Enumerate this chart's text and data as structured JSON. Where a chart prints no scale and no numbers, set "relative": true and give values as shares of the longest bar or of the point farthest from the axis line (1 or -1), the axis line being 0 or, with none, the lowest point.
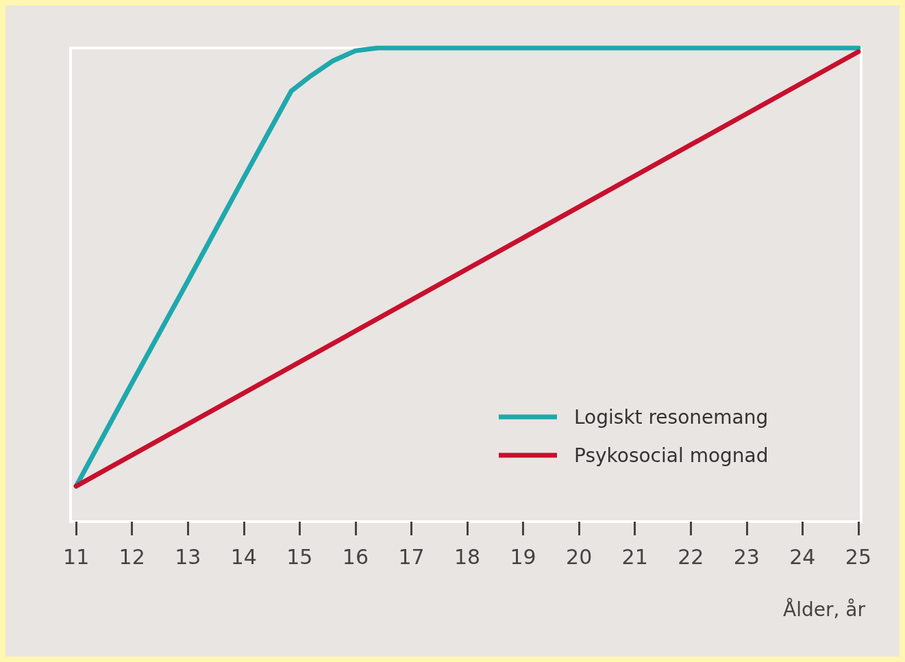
{
  "chart_data": {
    "type": "line",
    "relative": true,
    "xlabel": "Ålder, år",
    "xlim": [
      10.9,
      25.05
    ],
    "xticks": [
      11,
      12,
      13,
      14,
      15,
      16,
      17,
      18,
      19,
      20,
      21,
      22,
      23,
      24,
      25
    ],
    "series": [
      {
        "name": "Logiskt resonemang",
        "color": "#1ea8ad",
        "x": [
          11,
          12,
          13,
          14,
          14.85,
          15.2,
          15.6,
          16,
          16.4,
          25
        ],
        "values": [
          0.075,
          0.293,
          0.508,
          0.726,
          0.909,
          0.941,
          0.973,
          0.994,
          1,
          1
        ]
      },
      {
        "name": "Psykosocial mognad",
        "color": "#c8102e",
        "x": [
          11,
          25
        ],
        "values": [
          0.075,
          0.992
        ]
      }
    ],
    "legend": "bottom right",
    "grid": false
  }
}
